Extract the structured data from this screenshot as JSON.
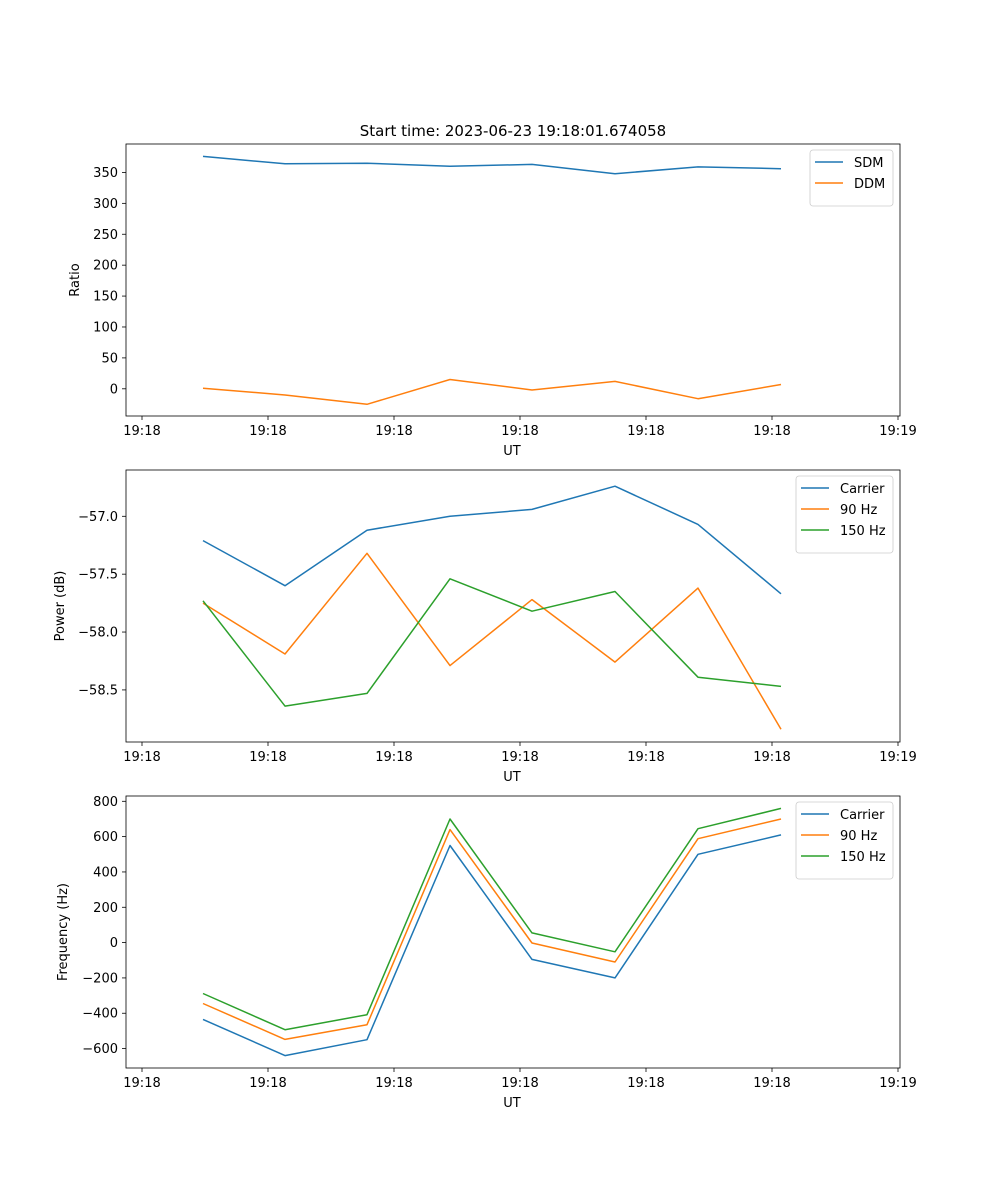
{
  "figure_title": "Start time: 2023-06-23 19:18:01.674058",
  "chart_data": [
    {
      "type": "line",
      "title": "Start time: 2023-06-23 19:18:01.674058",
      "xlabel": "UT",
      "ylabel": "Ratio",
      "x_tick_labels": [
        "19:18",
        "19:18",
        "19:18",
        "19:18",
        "19:18",
        "19:18",
        "19:19"
      ],
      "yticks": [
        0,
        50,
        100,
        150,
        200,
        250,
        300,
        350
      ],
      "ytick_labels": [
        "0",
        "50",
        "100",
        "150",
        "200",
        "250",
        "300",
        "350"
      ],
      "ylim": [
        -44,
        396
      ],
      "legend": "top-right",
      "grid": false,
      "series": [
        {
          "name": "SDM",
          "color": "#1f77b4",
          "values": [
            376,
            364,
            365,
            360,
            363,
            348,
            359,
            356
          ]
        },
        {
          "name": "DDM",
          "color": "#ff7f0e",
          "values": [
            1,
            -10,
            -25,
            15,
            -2,
            12,
            -16,
            7
          ]
        }
      ]
    },
    {
      "type": "line",
      "xlabel": "UT",
      "ylabel": "Power (dB)",
      "x_tick_labels": [
        "19:18",
        "19:18",
        "19:18",
        "19:18",
        "19:18",
        "19:18",
        "19:19"
      ],
      "yticks": [
        -58.5,
        -58.0,
        -57.5,
        -57.0
      ],
      "ytick_labels": [
        "−58.5",
        "−58.0",
        "−57.5",
        "−57.0"
      ],
      "ylim": [
        -58.95,
        -56.6
      ],
      "legend": "top-right",
      "grid": false,
      "series": [
        {
          "name": "Carrier",
          "color": "#1f77b4",
          "values": [
            -57.21,
            -57.6,
            -57.12,
            -57.0,
            -56.94,
            -56.74,
            -57.07,
            -57.67
          ]
        },
        {
          "name": "90 Hz",
          "color": "#ff7f0e",
          "values": [
            -57.75,
            -58.19,
            -57.32,
            -58.29,
            -57.72,
            -58.26,
            -57.62,
            -58.84
          ]
        },
        {
          "name": "150 Hz",
          "color": "#2ca02c",
          "values": [
            -57.73,
            -58.64,
            -58.53,
            -57.54,
            -57.82,
            -57.65,
            -58.39,
            -58.47
          ]
        }
      ]
    },
    {
      "type": "line",
      "xlabel": "UT",
      "ylabel": "Frequency (Hz)",
      "x_tick_labels": [
        "19:18",
        "19:18",
        "19:18",
        "19:18",
        "19:18",
        "19:18",
        "19:19"
      ],
      "yticks": [
        -600,
        -400,
        -200,
        0,
        200,
        400,
        600,
        800
      ],
      "ytick_labels": [
        "−600",
        "−400",
        "−200",
        "0",
        "200",
        "400",
        "600",
        "800"
      ],
      "ylim": [
        -710,
        830
      ],
      "legend": "top-right",
      "grid": false,
      "series": [
        {
          "name": "Carrier",
          "color": "#1f77b4",
          "values": [
            -435,
            -640,
            -550,
            550,
            -95,
            -200,
            500,
            610
          ]
        },
        {
          "name": "90 Hz",
          "color": "#ff7f0e",
          "values": [
            -345,
            -548,
            -465,
            640,
            -2,
            -110,
            588,
            700
          ]
        },
        {
          "name": "150 Hz",
          "color": "#2ca02c",
          "values": [
            -288,
            -493,
            -408,
            700,
            55,
            -52,
            645,
            760
          ]
        }
      ]
    }
  ]
}
